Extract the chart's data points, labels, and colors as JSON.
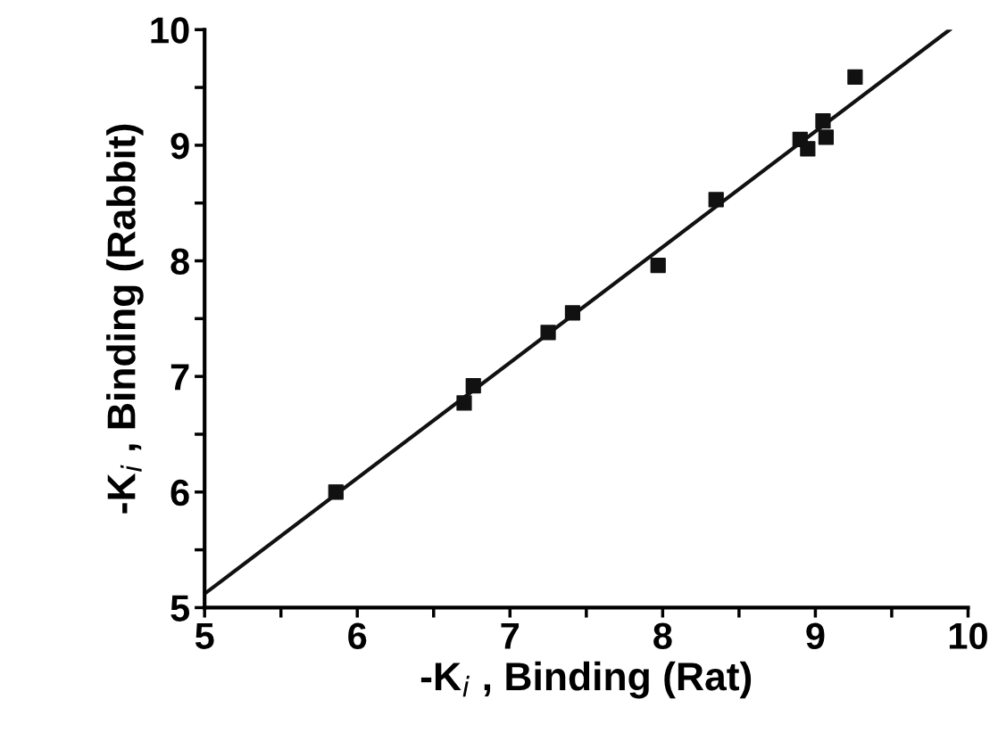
{
  "chart_data": {
    "type": "scatter",
    "xlabel": "-K$_{i}$ , Binding (Rat)",
    "ylabel": "-K$_{i}$ , Binding (Rabbit)",
    "xlim": [
      5,
      10
    ],
    "ylim": [
      5,
      10
    ],
    "xticks": [
      5,
      {
        "value": 5.5,
        "label": null
      },
      6,
      {
        "value": 6.5,
        "label": null
      },
      7,
      {
        "value": 7.5,
        "label": null
      },
      8,
      {
        "value": 8.5,
        "label": null
      },
      9,
      {
        "value": 9.5,
        "label": null
      },
      10
    ],
    "yticks": [
      5,
      {
        "value": 5.5,
        "label": null
      },
      6,
      {
        "value": 6.5,
        "label": null
      },
      7,
      {
        "value": 7.5,
        "label": null
      },
      8,
      {
        "value": 8.5,
        "label": null
      },
      9,
      {
        "value": 9.5,
        "label": null
      },
      10
    ],
    "grid": false,
    "legend": false,
    "series": [
      {
        "marker": "square",
        "color": "#111111",
        "x": [
          5.86,
          6.7,
          6.76,
          7.25,
          7.41,
          7.97,
          8.35,
          8.9,
          8.95,
          9.05,
          9.07,
          9.26
        ],
        "values": [
          6.0,
          6.77,
          6.92,
          7.38,
          7.55,
          7.96,
          8.53,
          9.05,
          8.97,
          9.21,
          9.07,
          9.59
        ]
      },
      {
        "type": "line",
        "marker": "none",
        "color": "#111111",
        "x": [
          5,
          9.88
        ],
        "values": [
          5.12,
          10.0
        ]
      }
    ]
  }
}
